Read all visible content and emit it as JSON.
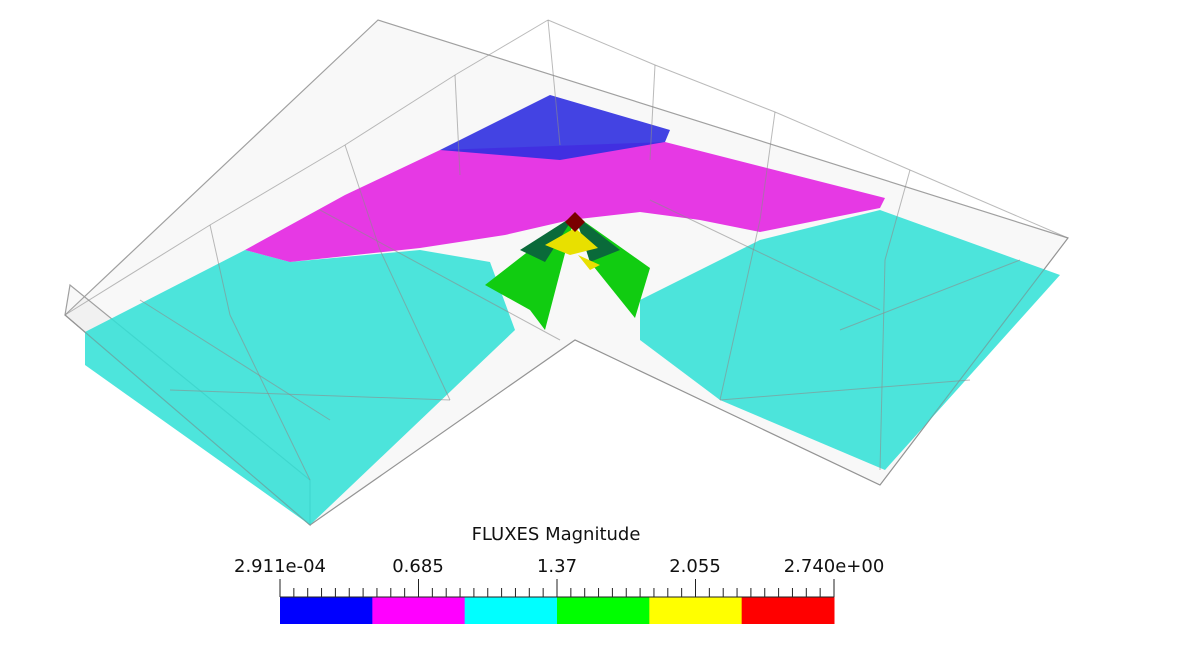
{
  "legend": {
    "title": "FLUXES Magnitude",
    "tick_labels": [
      "2.911e-04",
      "0.685",
      "1.37",
      "2.055",
      "2.740e+00"
    ],
    "range": [
      0.0002911,
      2.74
    ],
    "color_bands": [
      {
        "color": "#0000ff"
      },
      {
        "color": "#ff00ff"
      },
      {
        "color": "#00ffff"
      },
      {
        "color": "#00ff00"
      },
      {
        "color": "#ffff00"
      },
      {
        "color": "#ff0000"
      }
    ]
  },
  "colors": {
    "wireframe": "#9a9a9a",
    "background": "#ffffff",
    "cyan_region": "#2ee0d6",
    "magenta_region": "#e21ee0",
    "blue_region": "#2f2fe0",
    "green_region": "#11cc11",
    "yellow_region": "#e8e000"
  }
}
